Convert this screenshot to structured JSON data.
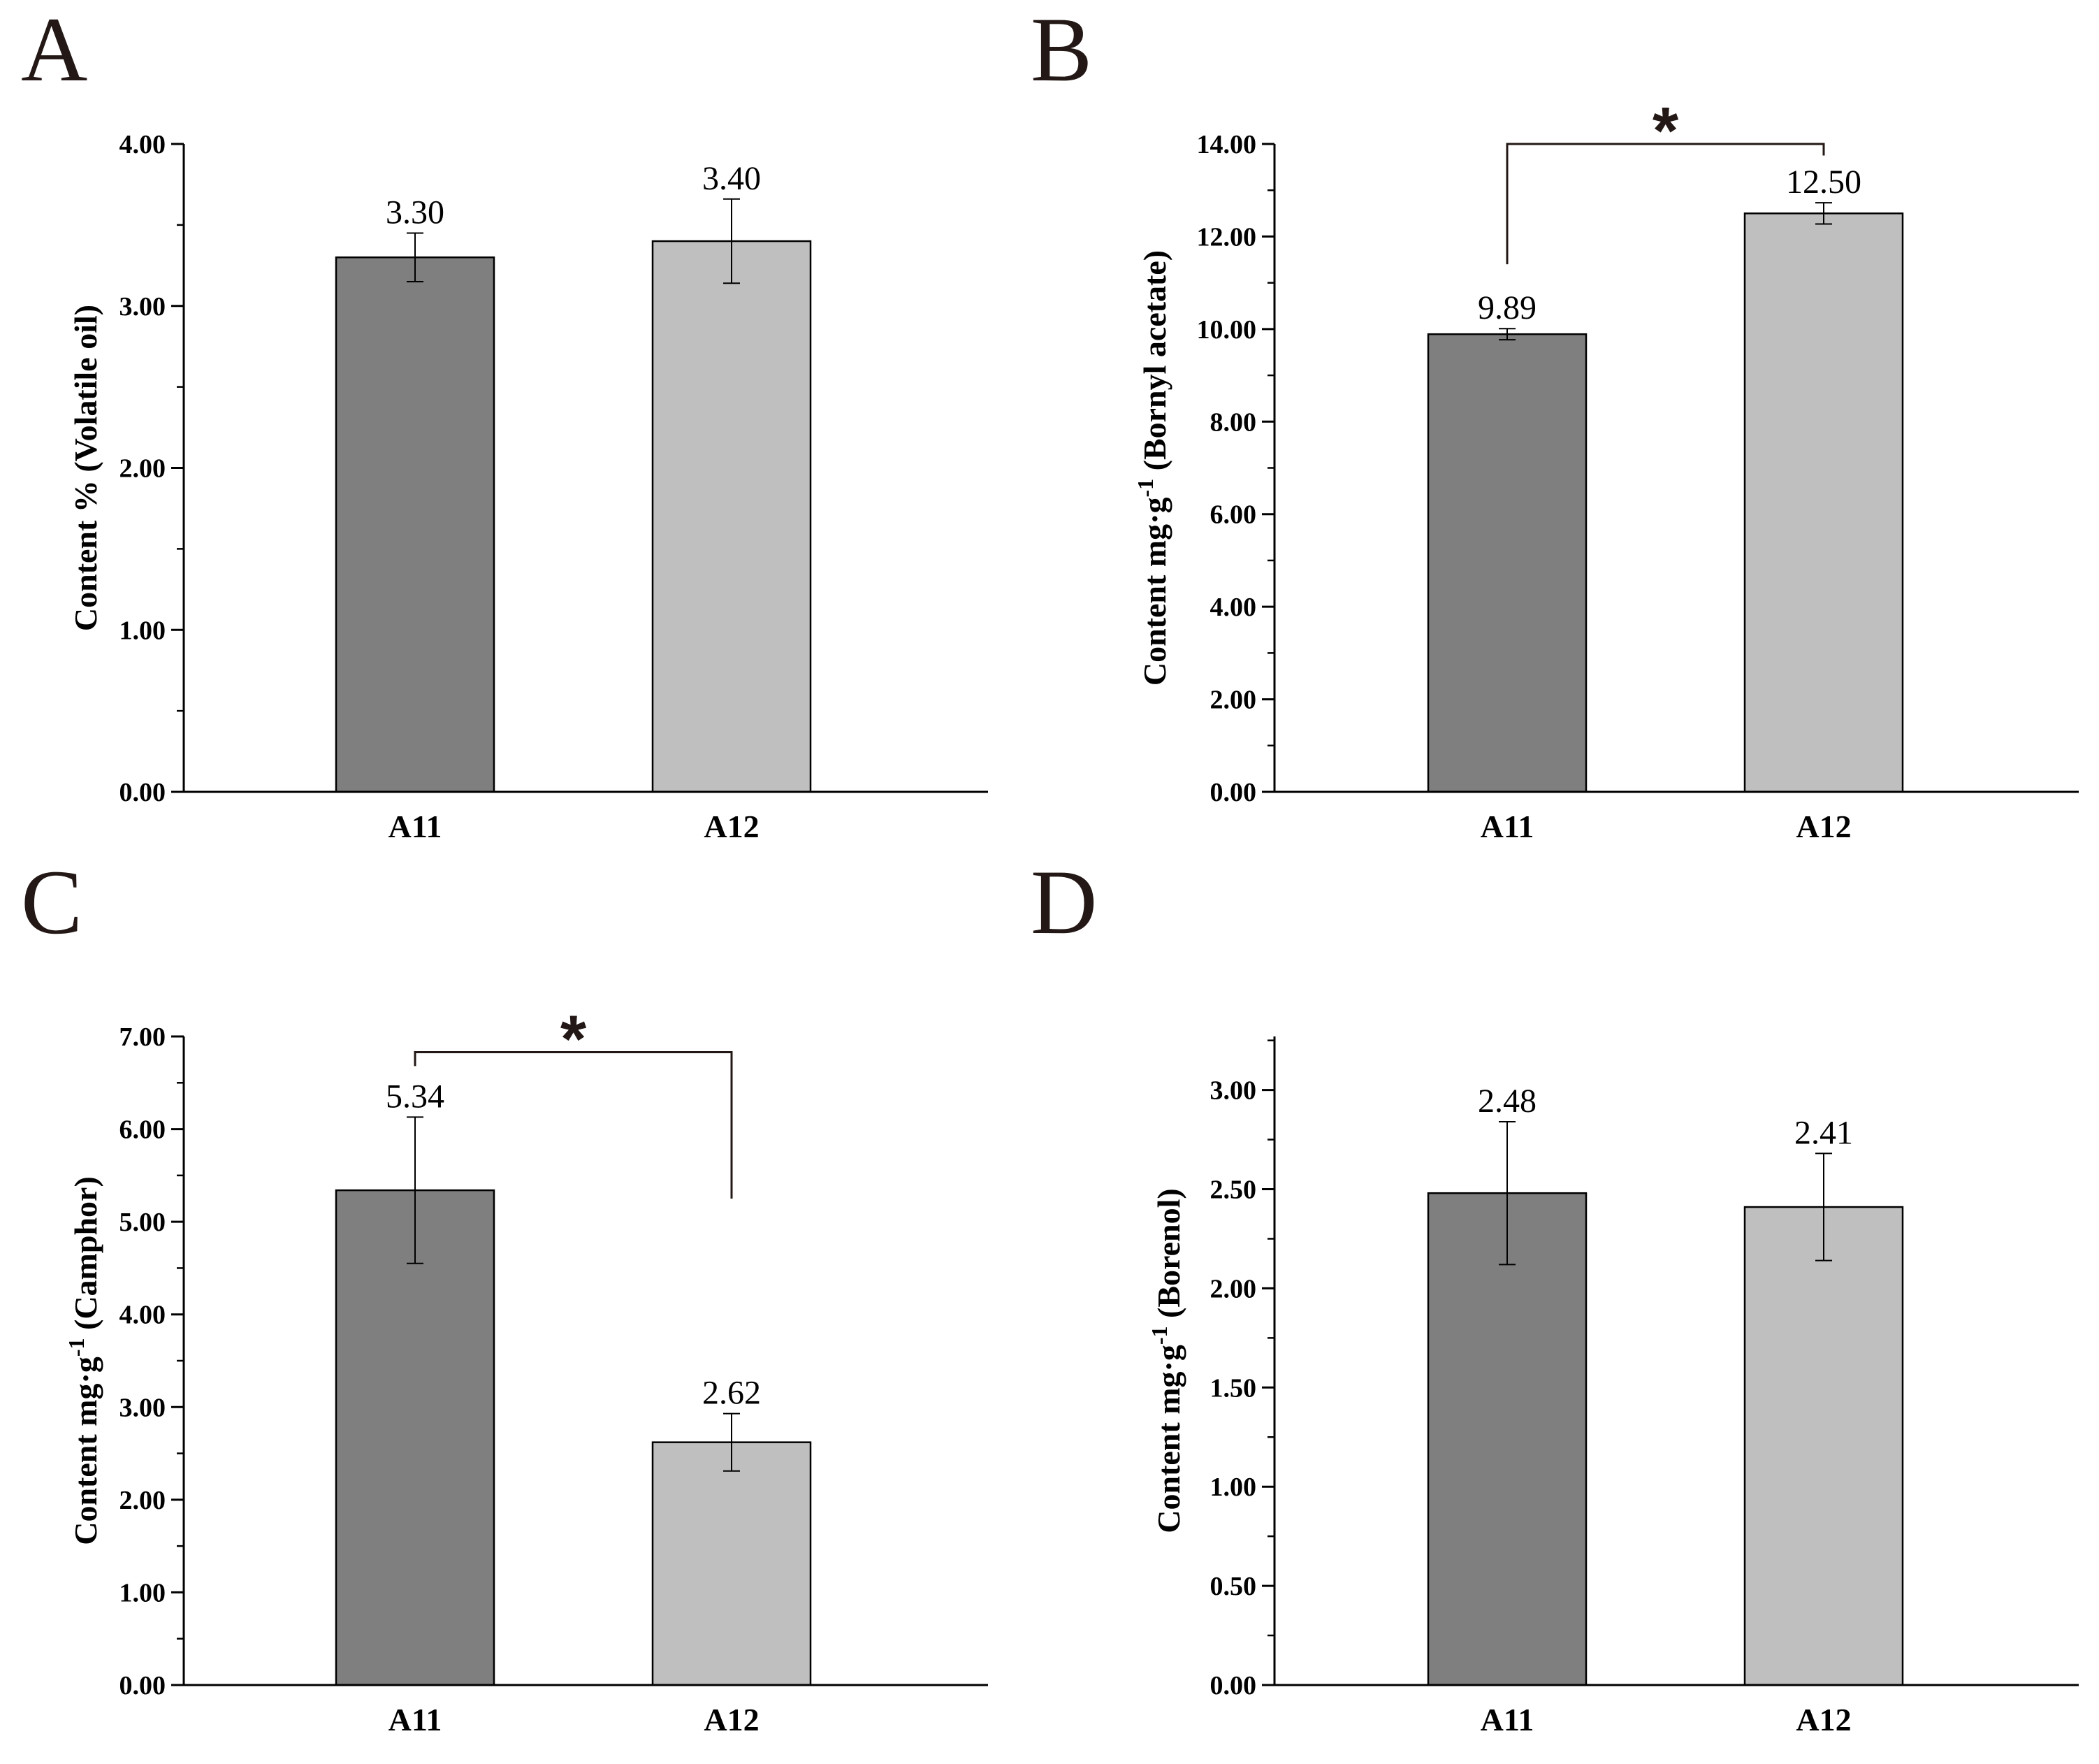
{
  "chart_data": [
    {
      "panel": "A",
      "type": "bar",
      "categories": [
        "A11",
        "A12"
      ],
      "values": [
        3.3,
        3.4
      ],
      "error_low": [
        3.15,
        3.14
      ],
      "error_high": [
        3.45,
        3.66
      ],
      "value_labels": [
        "3.30",
        "3.40"
      ],
      "ylabel_parts": [
        "Content  %  (Volatile oil)"
      ],
      "ylim": [
        0,
        4
      ],
      "major_ticks": [
        0,
        1,
        2,
        3,
        4
      ],
      "tick_labels": [
        "0.00",
        "1.00",
        "2.00",
        "3.00",
        "4.00"
      ],
      "minor_ticks": [
        0.5,
        1.5,
        2.5,
        3.5
      ],
      "significance": null,
      "colors": [
        "#7f7f7f",
        "#bfbfbf"
      ]
    },
    {
      "panel": "B",
      "type": "bar",
      "categories": [
        "A11",
        "A12"
      ],
      "values": [
        9.89,
        12.5
      ],
      "error_low": [
        9.77,
        12.27
      ],
      "error_high": [
        10.01,
        12.73
      ],
      "value_labels": [
        "9.89",
        "12.50"
      ],
      "ylabel_parts": [
        "Content mg·g",
        "-1",
        " (Bornyl acetate)"
      ],
      "ylim": [
        0,
        14
      ],
      "major_ticks": [
        0,
        2,
        4,
        6,
        8,
        10,
        12,
        14
      ],
      "tick_labels": [
        "0.00",
        "2.00",
        "4.00",
        "6.00",
        "8.00",
        "10.00",
        "12.00",
        "14.00"
      ],
      "minor_ticks": [
        1,
        3,
        5,
        7,
        9,
        11,
        13
      ],
      "significance": {
        "label": "*",
        "bracket_y": 14.0,
        "left_end": 11.4,
        "right_end": 13.75
      },
      "colors": [
        "#7f7f7f",
        "#bfbfbf"
      ]
    },
    {
      "panel": "C",
      "type": "bar",
      "categories": [
        "A11",
        "A12"
      ],
      "values": [
        5.34,
        2.62
      ],
      "error_low": [
        4.55,
        2.31
      ],
      "error_high": [
        6.13,
        2.93
      ],
      "value_labels": [
        "5.34",
        "2.62"
      ],
      "ylabel_parts": [
        "Content mg·g",
        "-1",
        " (Camphor)"
      ],
      "ylim": [
        0,
        7
      ],
      "major_ticks": [
        0,
        1,
        2,
        3,
        4,
        5,
        6,
        7
      ],
      "tick_labels": [
        "0.00",
        "1.00",
        "2.00",
        "3.00",
        "4.00",
        "5.00",
        "6.00",
        "7.00"
      ],
      "minor_ticks": [
        0.5,
        1.5,
        2.5,
        3.5,
        4.5,
        5.5,
        6.5
      ],
      "significance": {
        "label": "*",
        "bracket_y": 6.83,
        "left_end": 6.68,
        "right_end": 5.25
      },
      "colors": [
        "#7f7f7f",
        "#bfbfbf"
      ]
    },
    {
      "panel": "D",
      "type": "bar",
      "categories": [
        "A11",
        "A12"
      ],
      "values": [
        2.48,
        2.41
      ],
      "error_low": [
        2.12,
        2.14
      ],
      "error_high": [
        2.84,
        2.68
      ],
      "value_labels": [
        "2.48",
        "2.41"
      ],
      "ylabel_parts": [
        "Content mg·g",
        "-1",
        " (Borenol)"
      ],
      "ylim": [
        0,
        3.27
      ],
      "major_ticks": [
        0,
        0.5,
        1,
        1.5,
        2,
        2.5,
        3
      ],
      "tick_labels": [
        "0.00",
        "0.50",
        "1.00",
        "1.50",
        "2.00",
        "2.50",
        "3.00"
      ],
      "minor_ticks": [
        0.25,
        0.75,
        1.25,
        1.75,
        2.25,
        2.75,
        3.25
      ],
      "significance": null,
      "colors": [
        "#7f7f7f",
        "#bfbfbf"
      ]
    }
  ]
}
